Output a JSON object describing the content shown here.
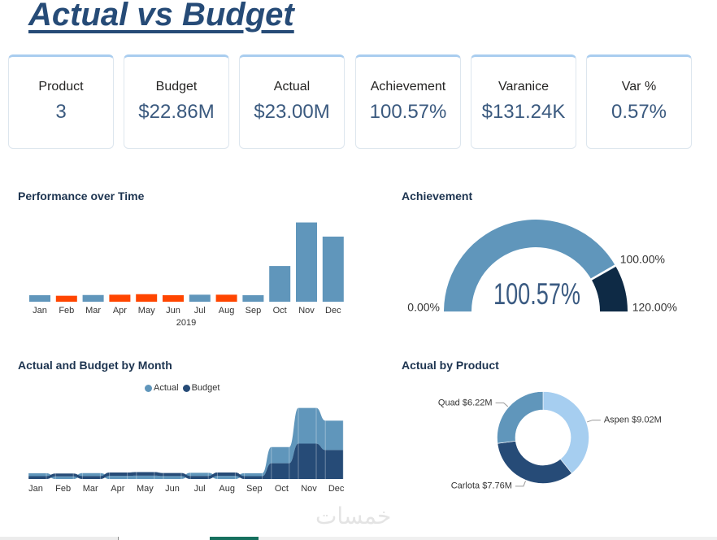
{
  "header": {
    "title": "Actual vs Budget"
  },
  "kpis": [
    {
      "label": "Product",
      "value": "3"
    },
    {
      "label": "Budget",
      "value": "$22.86M"
    },
    {
      "label": "Actual",
      "value": "$23.00M"
    },
    {
      "label": "Achievement",
      "value": "100.57%"
    },
    {
      "label": "Varanice",
      "value": "$131.24K"
    },
    {
      "label": "Var %",
      "value": "0.57%"
    }
  ],
  "colors": {
    "title": "#264b77",
    "kpi_accent": "#a9cdef",
    "kpi_value": "#3b5a7f",
    "section_title": "#1d3450",
    "page_tab_active": "#16705e"
  },
  "watermark": "خمسات",
  "page_tabs": [
    {
      "active": false
    },
    {
      "active": false
    },
    {
      "active": true
    }
  ],
  "chart_data": [
    {
      "type": "bar",
      "title": "Performance over Time",
      "categories": [
        "Jan",
        "Feb",
        "Mar",
        "Apr",
        "May",
        "Jun",
        "Jul",
        "Aug",
        "Sep",
        "Oct",
        "Nov",
        "Dec"
      ],
      "values": [
        0.62,
        0.57,
        0.64,
        0.67,
        0.72,
        0.62,
        0.67,
        0.67,
        0.62,
        3.41,
        7.57,
        6.22
      ],
      "status": [
        "above",
        "below",
        "above",
        "below",
        "below",
        "below",
        "above",
        "below",
        "above",
        "above",
        "above",
        "above"
      ],
      "colors": {
        "above": "#6096bb",
        "below": "#ff4500"
      },
      "unit": "$M actual (estimated from bar heights)",
      "xlabel": "2019",
      "ylabel": "",
      "ylim": [
        0,
        8
      ],
      "grid": false,
      "legend": "none"
    },
    {
      "type": "pie",
      "variant": "gauge",
      "title": "Achievement",
      "value": 100.57,
      "value_label": "100.57%",
      "min": 0,
      "min_label": "0.00%",
      "max": 120,
      "max_label": "120.00%",
      "target": 100,
      "target_label": "100.00%",
      "colors": {
        "fill": "#6096bb",
        "remaining": "#0e2a45",
        "target": "#ffffff",
        "value_text": "#3b5b82"
      }
    },
    {
      "type": "area",
      "variant": "ribbon",
      "title": "Actual and Budget by Month",
      "categories": [
        "Jan",
        "Feb",
        "Mar",
        "Apr",
        "May",
        "Jun",
        "Jul",
        "Aug",
        "Sep",
        "Oct",
        "Nov",
        "Dec"
      ],
      "series": [
        {
          "name": "Actual",
          "color": "#6096bb",
          "values": [
            0.62,
            0.57,
            0.64,
            0.67,
            0.72,
            0.62,
            0.67,
            0.67,
            0.62,
            3.41,
            7.57,
            6.22
          ]
        },
        {
          "name": "Budget",
          "color": "#264b77",
          "values": [
            0.6,
            0.6,
            0.62,
            0.7,
            0.75,
            0.65,
            0.64,
            0.7,
            0.6,
            3.35,
            7.5,
            6.15
          ]
        }
      ],
      "unit": "$M (estimated)",
      "legend": "top-center",
      "grid": false
    },
    {
      "type": "pie",
      "variant": "donut",
      "title": "Actual by Product",
      "categories": [
        "Aspen",
        "Carlota",
        "Quad"
      ],
      "values": [
        9.02,
        7.76,
        6.22
      ],
      "labels": [
        "Aspen $9.02M",
        "Carlota $7.76M",
        "Quad $6.22M"
      ],
      "colors": [
        "#a6cef0",
        "#264b77",
        "#6096bb"
      ],
      "unit": "$M"
    }
  ]
}
